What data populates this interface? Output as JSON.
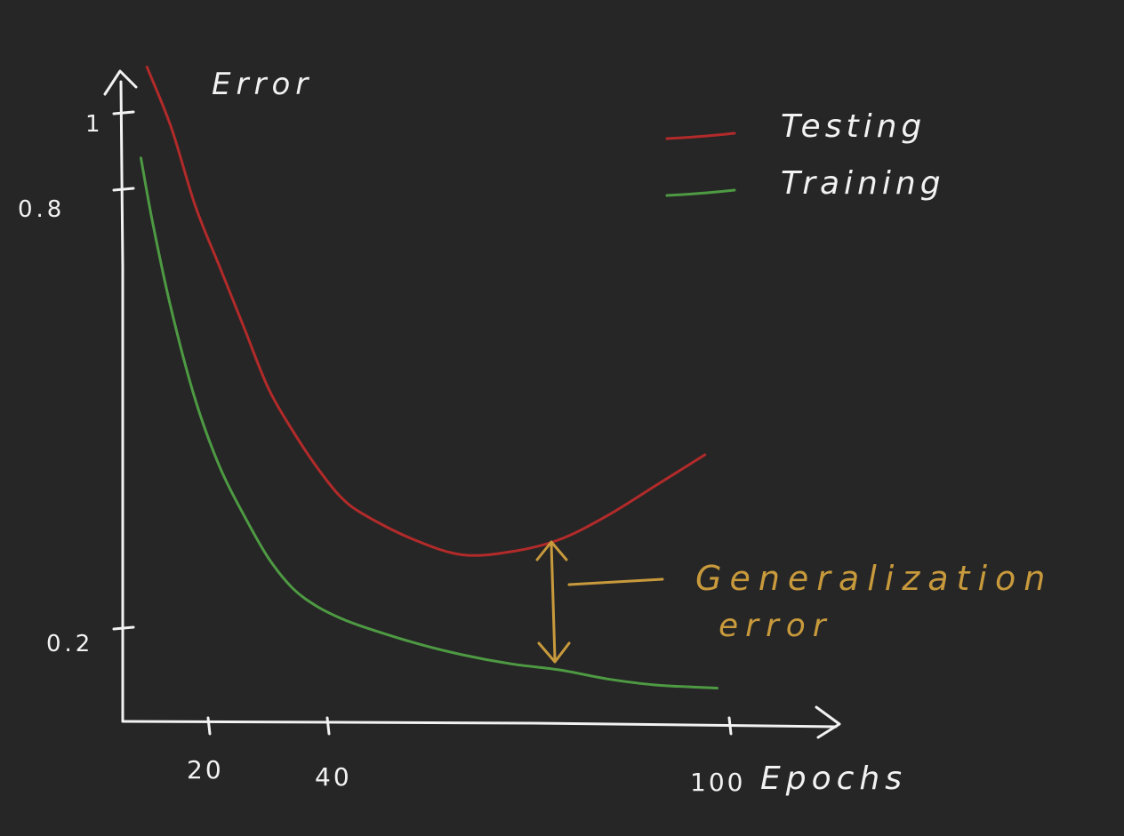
{
  "chart_data": {
    "type": "line",
    "title": "",
    "xlabel": "Epochs",
    "ylabel": "Error",
    "x_ticks": [
      "20",
      "40",
      "100"
    ],
    "y_ticks": [
      "1",
      "0.8",
      "0.2"
    ],
    "xlim": [
      0,
      100
    ],
    "ylim": [
      0,
      1.05
    ],
    "grid": false,
    "legend": "top-right",
    "series": [
      {
        "name": "Testing",
        "color": "#b22a2a",
        "x": [
          4,
          8,
          12,
          16,
          20,
          24,
          28,
          32,
          36,
          40,
          48,
          56,
          64,
          72,
          80,
          88,
          96
        ],
        "y": [
          1.08,
          0.98,
          0.85,
          0.75,
          0.65,
          0.55,
          0.48,
          0.42,
          0.37,
          0.34,
          0.3,
          0.275,
          0.28,
          0.3,
          0.34,
          0.39,
          0.44
        ]
      },
      {
        "name": "Training",
        "color": "#4e9a43",
        "x": [
          3,
          5,
          8,
          12,
          16,
          20,
          24,
          28,
          32,
          36,
          40,
          48,
          56,
          64,
          72,
          80,
          88,
          98
        ],
        "y": [
          0.93,
          0.82,
          0.68,
          0.53,
          0.42,
          0.34,
          0.27,
          0.22,
          0.19,
          0.17,
          0.155,
          0.13,
          0.11,
          0.095,
          0.085,
          0.07,
          0.06,
          0.055
        ]
      }
    ],
    "annotation": {
      "text": [
        "Generalization",
        "error"
      ],
      "color": "#c89a3c",
      "at_x": 71
    }
  }
}
